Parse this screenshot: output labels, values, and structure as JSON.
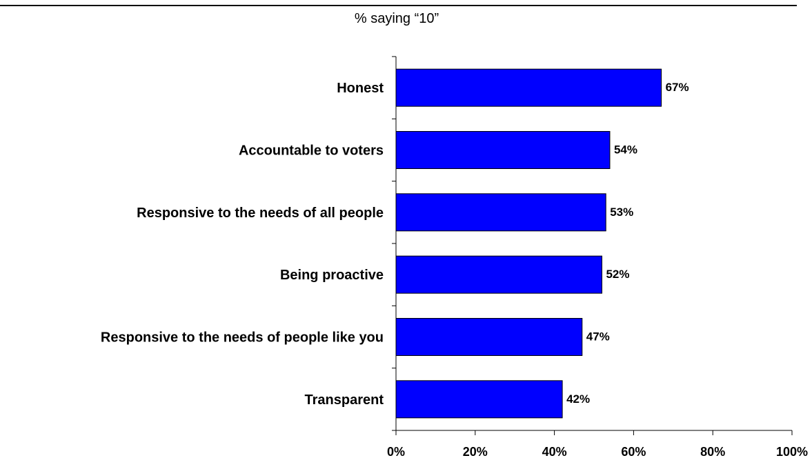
{
  "chart_data": {
    "type": "bar",
    "orientation": "horizontal",
    "subtitle": "% saying “10”",
    "categories": [
      "Honest",
      "Accountable to voters",
      "Responsive to the needs of all people",
      "Being proactive",
      "Responsive to the needs of people like you",
      "Transparent"
    ],
    "values": [
      67,
      54,
      53,
      52,
      47,
      42
    ],
    "data_labels": [
      "67%",
      "54%",
      "53%",
      "52%",
      "47%",
      "42%"
    ],
    "xlim": [
      0,
      100
    ],
    "x_ticks": [
      0,
      20,
      40,
      60,
      80,
      100
    ],
    "x_tick_labels": [
      "0%",
      "20%",
      "40%",
      "60%",
      "80%",
      "100%"
    ],
    "bar_color": "#0000FF",
    "bar_edge_color": "#000000",
    "grid": false,
    "legend": "none"
  }
}
